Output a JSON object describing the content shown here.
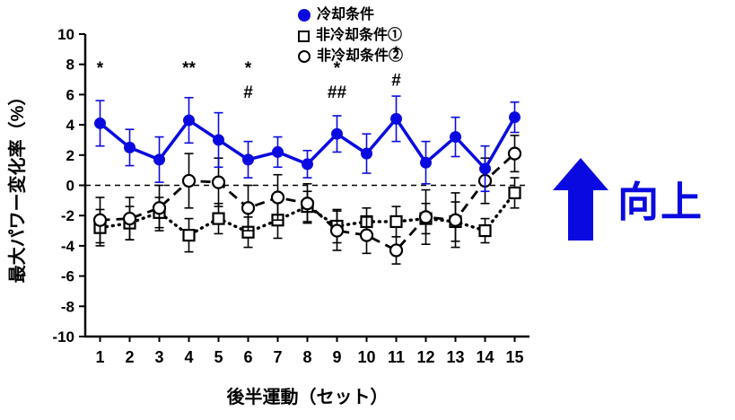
{
  "figure": {
    "direction_label": "向上",
    "accent_color": "#0a0ae0"
  },
  "chart_data": {
    "type": "line",
    "title": "",
    "xlabel": "後半運動（セット）",
    "ylabel": "最大パワー変化率（%）",
    "x": [
      1,
      2,
      3,
      4,
      5,
      6,
      7,
      8,
      9,
      10,
      11,
      12,
      13,
      14,
      15
    ],
    "ylim": [
      -10,
      10
    ],
    "ytick_step": 2,
    "zero_line": true,
    "grid": false,
    "legend_position": "top-right",
    "series": [
      {
        "name": "冷却条件",
        "marker": "filled-circle",
        "line": "solid",
        "color": "#0a0ae0",
        "values": [
          4.1,
          2.5,
          1.7,
          4.3,
          3.0,
          1.7,
          2.2,
          1.4,
          3.4,
          2.1,
          4.4,
          1.5,
          3.2,
          1.1,
          4.5
        ],
        "errors": [
          1.5,
          1.2,
          1.5,
          1.5,
          1.8,
          1.2,
          1.0,
          0.9,
          1.2,
          1.3,
          1.5,
          1.4,
          1.3,
          1.5,
          1.0
        ]
      },
      {
        "name": "非冷却条件①",
        "marker": "open-square",
        "line": "dotted",
        "color": "#000000",
        "values": [
          -2.8,
          -2.5,
          -1.8,
          -3.3,
          -2.2,
          -3.1,
          -2.3,
          -1.4,
          -2.7,
          -2.4,
          -2.4,
          -2.2,
          -2.4,
          -3.0,
          -0.5
        ],
        "errors": [
          1.2,
          1.1,
          1.0,
          1.1,
          1.0,
          1.0,
          1.2,
          1.0,
          1.1,
          0.9,
          1.0,
          1.0,
          1.3,
          0.8,
          1.0
        ]
      },
      {
        "name": "非冷却条件②",
        "marker": "open-circle",
        "line": "dashed",
        "color": "#000000",
        "values": [
          -2.3,
          -2.2,
          -1.5,
          0.3,
          0.2,
          -1.5,
          -0.8,
          -1.2,
          -3.0,
          -3.3,
          -4.3,
          -2.1,
          -2.3,
          0.3,
          2.1
        ],
        "errors": [
          1.5,
          1.4,
          1.5,
          1.8,
          1.6,
          1.5,
          1.5,
          1.3,
          1.3,
          1.2,
          0.9,
          1.8,
          1.8,
          1.5,
          1.2
        ]
      }
    ],
    "annotations": [
      {
        "x": 1,
        "y": 7.4,
        "text": "*"
      },
      {
        "x": 4,
        "y": 7.4,
        "text": "**"
      },
      {
        "x": 6,
        "y": 7.4,
        "text": "*"
      },
      {
        "x": 6,
        "y": 5.8,
        "text": "#"
      },
      {
        "x": 9,
        "y": 7.4,
        "text": "*"
      },
      {
        "x": 9,
        "y": 5.8,
        "text": "##"
      },
      {
        "x": 11,
        "y": 8.4,
        "text": "*"
      },
      {
        "x": 11,
        "y": 6.6,
        "text": "#"
      }
    ]
  }
}
